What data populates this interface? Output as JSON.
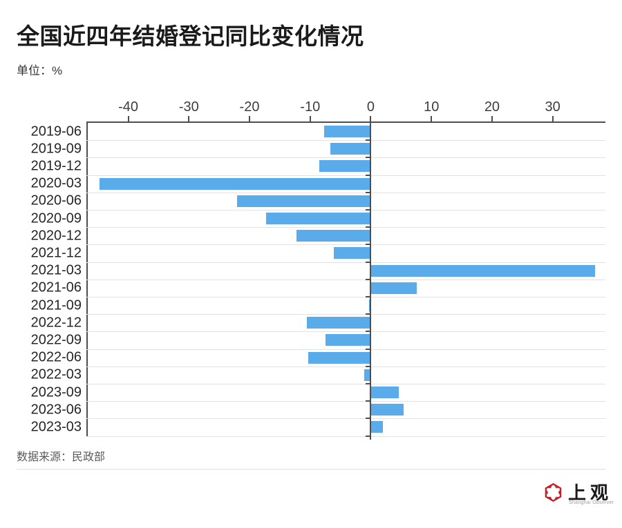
{
  "title": "全国近四年结婚登记同比变化情况",
  "unit_label": "单位：%",
  "source_label": "数据来源：民政部",
  "logo": {
    "cn": "上观",
    "en": "Shanghai Observer"
  },
  "colors": {
    "bar": "#5aabea",
    "axis": "#4d4d4d",
    "grid": "#e1e1e1",
    "logo_red_dark": "#c0232a",
    "logo_red_light": "#d93a3f"
  },
  "chart_data": {
    "type": "bar",
    "orientation": "horizontal",
    "title": "全国近四年结婚登记同比变化情况",
    "unit": "%",
    "xlabel": "",
    "ylabel": "",
    "x_axis": {
      "position": "top",
      "ticks": [
        -40,
        -30,
        -20,
        -10,
        0,
        10,
        20,
        30
      ],
      "min": -46.9,
      "max": 38.7
    },
    "grid": true,
    "legend": "none",
    "source": "民政部",
    "categories": [
      "2019-06",
      "2019-09",
      "2019-12",
      "2020-03",
      "2020-06",
      "2020-09",
      "2020-12",
      "2021-12",
      "2021-03",
      "2021-06",
      "2021-09",
      "2022-12",
      "2022-09",
      "2022-06",
      "2022-03",
      "2023-09",
      "2023-06",
      "2023-03"
    ],
    "values": [
      -7.7,
      -6.7,
      -8.5,
      -44.7,
      -22.0,
      -17.3,
      -12.2,
      -6.1,
      36.9,
      7.5,
      -0.3,
      -10.5,
      -7.5,
      -10.3,
      -1.1,
      4.5,
      5.3,
      1.9
    ]
  }
}
